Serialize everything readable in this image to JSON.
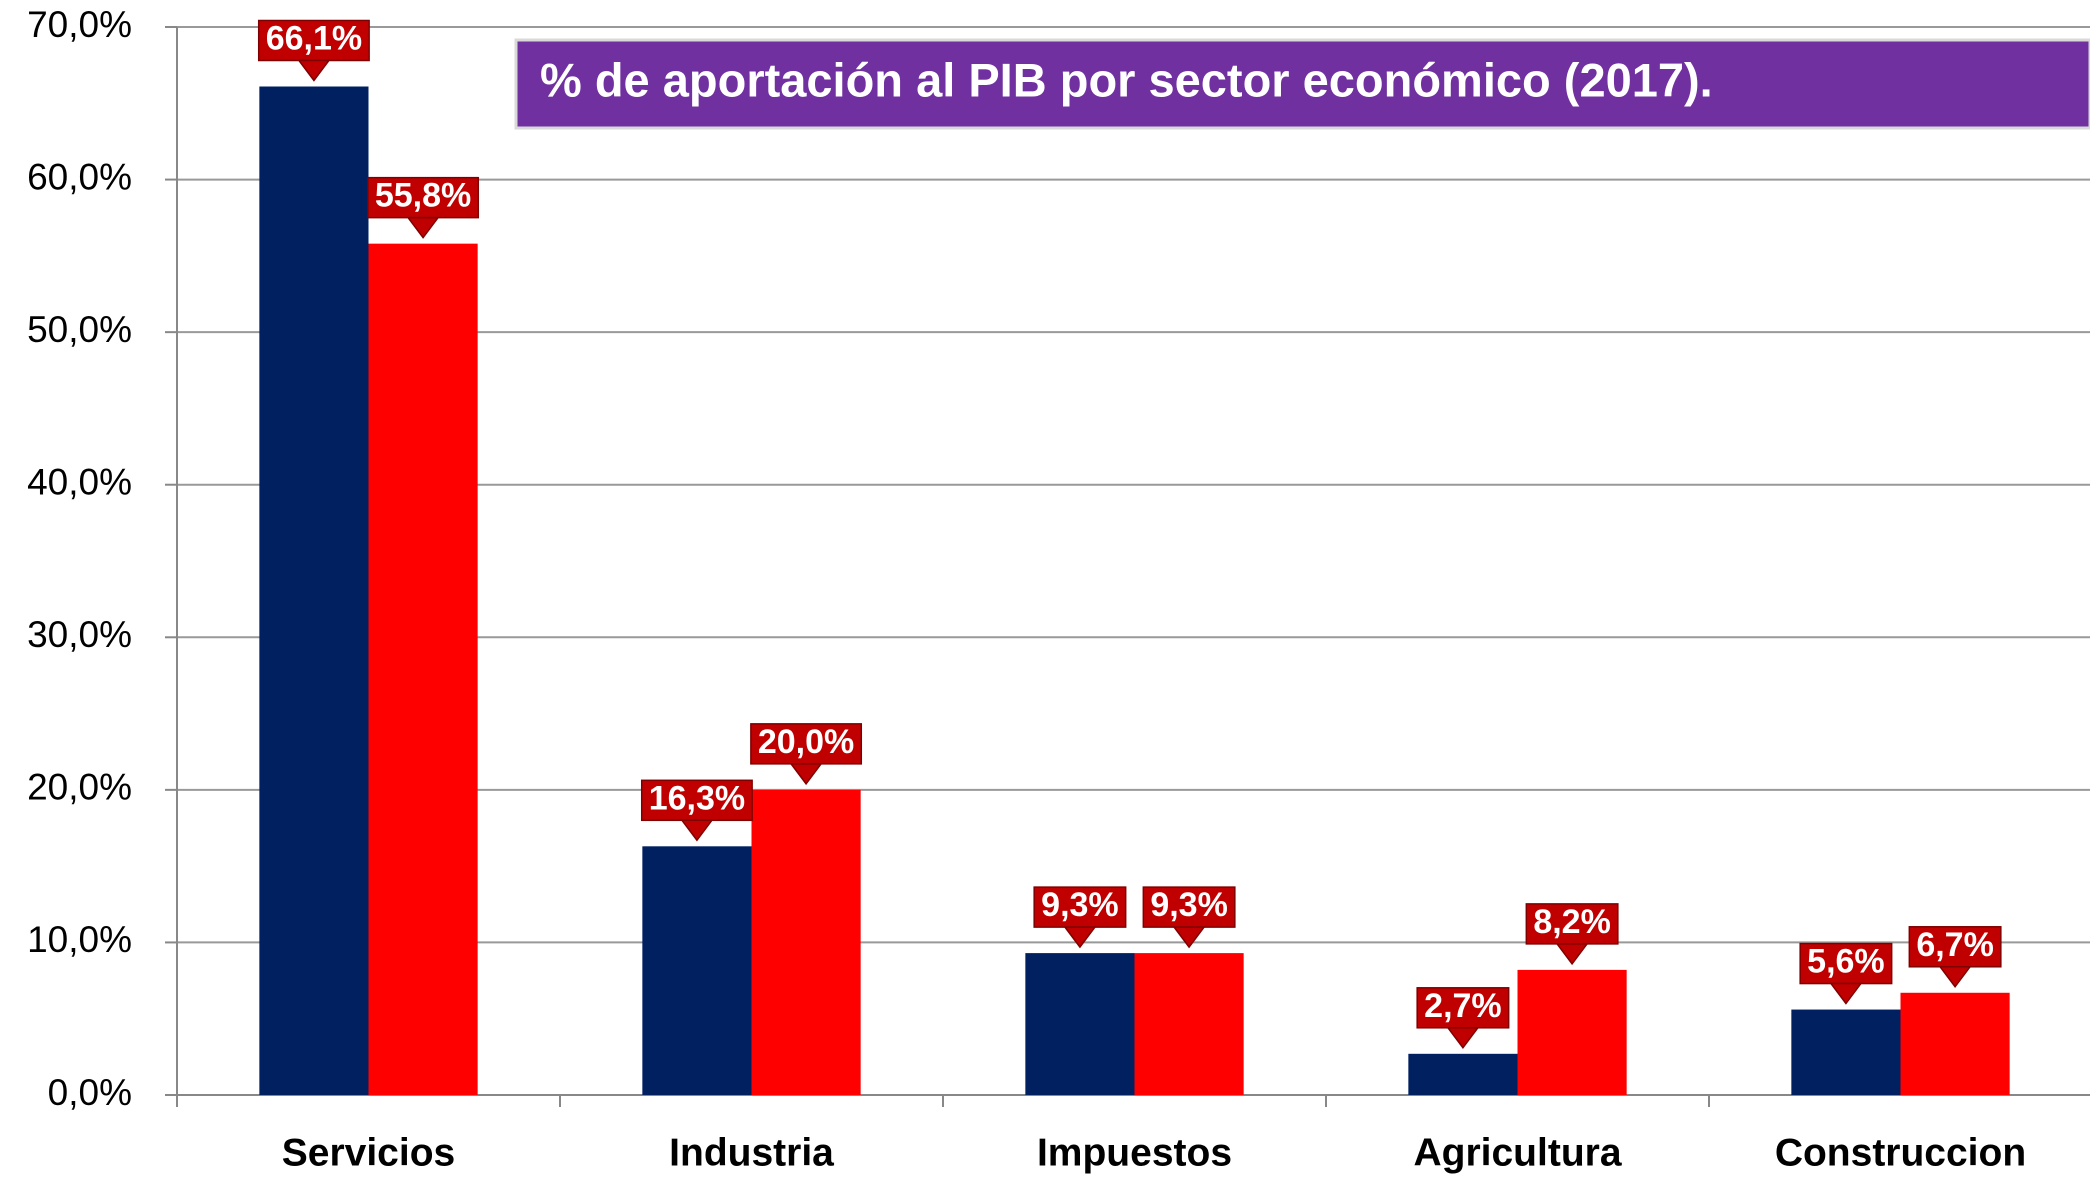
{
  "chart_data": {
    "type": "bar",
    "title": "% de aportación al PIB por sector económico (2017).",
    "categories": [
      "Servicios",
      "Industria",
      "Impuestos",
      "Agricultura",
      "Construccion"
    ],
    "series": [
      {
        "color": "#002060",
        "values": [
          66.1,
          16.3,
          9.3,
          2.7,
          5.6
        ],
        "value_labels": [
          "66,1%",
          "16,3%",
          "9,3%",
          "2,7%",
          "5,6%"
        ]
      },
      {
        "color": "#ff0000",
        "values": [
          55.8,
          20.0,
          9.3,
          8.2,
          6.7
        ],
        "value_labels": [
          "55,8%",
          "20,0%",
          "9,3%",
          "8,2%",
          "6,7%"
        ]
      }
    ],
    "ylim": [
      0,
      70
    ],
    "yticks": [
      {
        "value": 0,
        "label": "0,0%"
      },
      {
        "value": 10,
        "label": "10,0%"
      },
      {
        "value": 20,
        "label": "20,0%"
      },
      {
        "value": 30,
        "label": "30,0%"
      },
      {
        "value": 40,
        "label": "40,0%"
      },
      {
        "value": 50,
        "label": "50,0%"
      },
      {
        "value": 60,
        "label": "60,0%"
      },
      {
        "value": 70,
        "label": "70,0%"
      }
    ],
    "grid": true
  }
}
